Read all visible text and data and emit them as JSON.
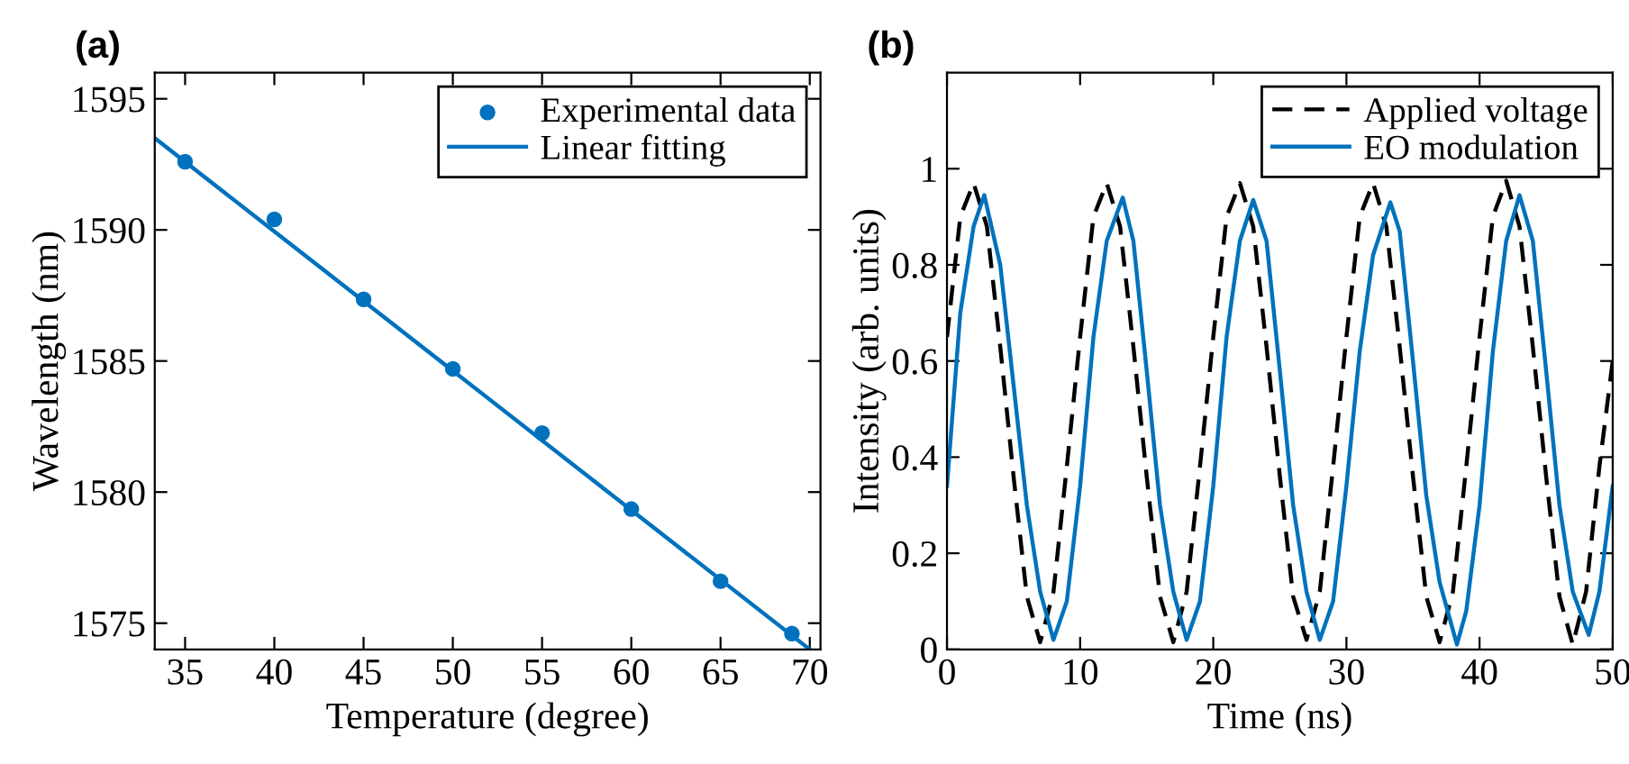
{
  "chart_data": [
    {
      "type": "scatter",
      "title": "(a)",
      "xlabel": "Temperature (degree)",
      "ylabel": "Wavelength (nm)",
      "xlim": [
        33.3,
        70.6
      ],
      "ylim": [
        1574,
        1596
      ],
      "xticks": [
        35,
        40,
        45,
        50,
        55,
        60,
        65,
        70
      ],
      "yticks": [
        1575,
        1580,
        1585,
        1590,
        1595
      ],
      "grid": false,
      "legend": "top right",
      "series": [
        {
          "name": "Experimental data",
          "marker": "circle",
          "color": "#0072bd",
          "x": [
            35,
            40,
            45,
            50,
            55,
            60,
            65,
            69
          ],
          "values": [
            1592.6,
            1590.4,
            1587.35,
            1584.7,
            1582.25,
            1579.35,
            1576.6,
            1574.6
          ]
        },
        {
          "name": "Linear fitting",
          "type": "line",
          "line_style": "solid",
          "color": "#0072bd",
          "x": [
            33.3,
            70.0
          ],
          "values": [
            1593.5,
            1574.0
          ]
        }
      ]
    },
    {
      "type": "line",
      "title": "(b)",
      "xlabel": "Time (ns)",
      "ylabel": "Intensity (arb. units)",
      "xlim": [
        0,
        50
      ],
      "ylim": [
        0,
        1.2
      ],
      "xticks": [
        0,
        10,
        20,
        30,
        40,
        50
      ],
      "yticks": [
        0,
        0.2,
        0.4,
        0.6,
        0.8,
        1
      ],
      "grid": false,
      "legend": "top right",
      "series": [
        {
          "name": "Applied voltage",
          "line_style": "dashed",
          "color": "#000000",
          "x": [
            0,
            1,
            2,
            3,
            4,
            5,
            6,
            7,
            8,
            9,
            10,
            11,
            12,
            13,
            14,
            15,
            16,
            17,
            18,
            19,
            20,
            21,
            22,
            23,
            24,
            25,
            26,
            27,
            28,
            29,
            30,
            31,
            32,
            33,
            34,
            35,
            36,
            37,
            38,
            39,
            40,
            41,
            42,
            43,
            44,
            45,
            46,
            47,
            48,
            49,
            50
          ],
          "values": [
            0.65,
            0.9,
            0.97,
            0.88,
            0.63,
            0.36,
            0.11,
            0.015,
            0.12,
            0.38,
            0.65,
            0.9,
            0.97,
            0.88,
            0.63,
            0.36,
            0.11,
            0.015,
            0.12,
            0.38,
            0.65,
            0.9,
            0.97,
            0.88,
            0.63,
            0.36,
            0.11,
            0.02,
            0.12,
            0.38,
            0.65,
            0.9,
            0.97,
            0.88,
            0.63,
            0.36,
            0.11,
            0.015,
            0.12,
            0.38,
            0.65,
            0.9,
            0.975,
            0.88,
            0.63,
            0.36,
            0.11,
            0.01,
            0.12,
            0.38,
            0.6
          ]
        },
        {
          "name": "EO modulation",
          "line_style": "solid",
          "color": "#0072bd",
          "x": [
            0,
            1,
            2,
            2.8,
            4,
            5,
            6,
            7,
            8,
            9,
            10,
            11,
            12,
            13.2,
            14,
            15,
            16,
            17,
            18,
            19,
            20,
            21,
            22,
            23,
            24,
            25,
            26,
            27,
            28,
            29,
            30,
            31,
            32,
            33.3,
            34,
            35,
            36,
            37,
            38.3,
            39,
            40,
            41,
            42,
            43,
            44,
            45,
            46,
            47,
            48.2,
            49,
            50
          ],
          "values": [
            0.34,
            0.7,
            0.88,
            0.945,
            0.8,
            0.55,
            0.3,
            0.12,
            0.02,
            0.1,
            0.34,
            0.65,
            0.85,
            0.94,
            0.85,
            0.58,
            0.3,
            0.12,
            0.02,
            0.1,
            0.34,
            0.65,
            0.85,
            0.935,
            0.85,
            0.58,
            0.3,
            0.12,
            0.02,
            0.1,
            0.34,
            0.62,
            0.82,
            0.93,
            0.87,
            0.6,
            0.32,
            0.14,
            0.01,
            0.08,
            0.3,
            0.62,
            0.85,
            0.945,
            0.85,
            0.58,
            0.3,
            0.12,
            0.03,
            0.12,
            0.34
          ]
        }
      ]
    }
  ]
}
